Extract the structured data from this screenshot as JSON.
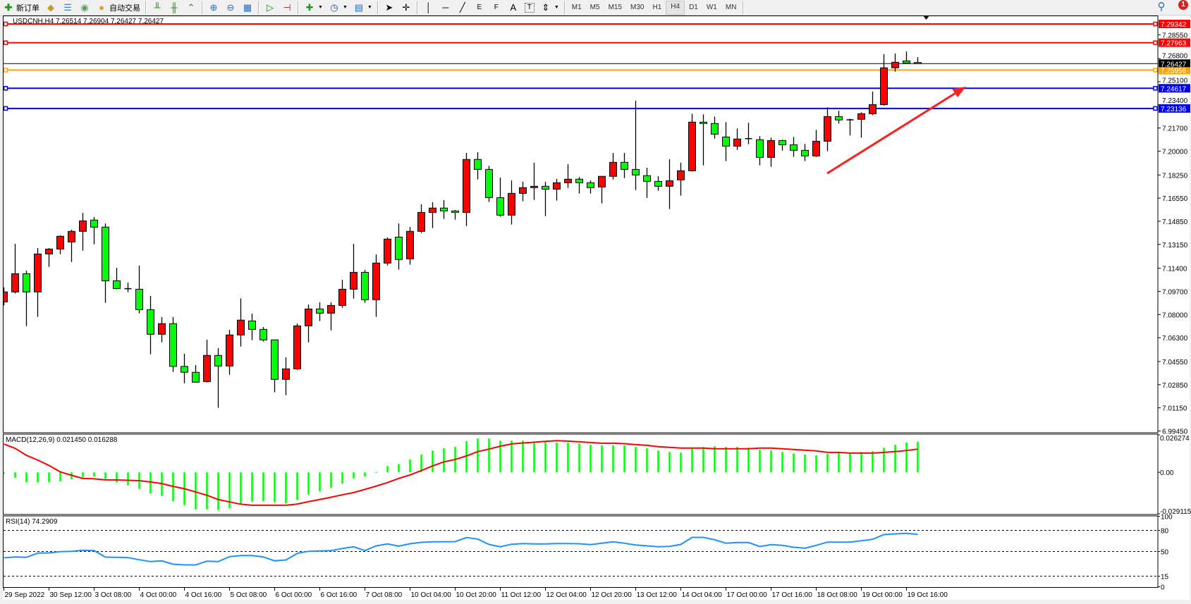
{
  "toolbar": {
    "new_order_label": "新订单",
    "auto_trading_label": "自动交易",
    "timeframes": [
      "M1",
      "M5",
      "M15",
      "M30",
      "H1",
      "H4",
      "D1",
      "W1",
      "MN"
    ],
    "active_timeframe": "H4",
    "drawing_labels": {
      "fibo_fan": "E",
      "fibo_grid": "F",
      "text": "A",
      "label": "T"
    },
    "notification_count": "1"
  },
  "chart_title": "USDCNH,H4  7.26514 7.26904 7.26427 7.26427",
  "colors": {
    "bull": "#ff0000",
    "bear": "#00ff00",
    "macd_hist": "#00ff00",
    "macd_signal": "#ff0000",
    "rsi": "#1e90ff",
    "current_price": "#000000"
  },
  "chart_data": [
    {
      "type": "candlestick",
      "symbol": "USDCNH",
      "timeframe": "H4",
      "ylim": [
        6.9932,
        7.2991
      ],
      "price_ticks": [
        "7.28550",
        "7.26800",
        "7.25100",
        "7.23400",
        "7.21700",
        "7.20000",
        "7.18250",
        "7.16550",
        "7.14850",
        "7.13150",
        "7.11400",
        "7.09700",
        "7.08000",
        "7.06300",
        "7.04550",
        "7.02850",
        "7.01150",
        "6.99450"
      ],
      "time_labels": [
        "29 Sep 2022",
        "30 Sep 12:00",
        "3 Oct 08:00",
        "4 Oct 00:00",
        "4 Oct 16:00",
        "5 Oct 08:00",
        "6 Oct 00:00",
        "6 Oct 16:00",
        "7 Oct 08:00",
        "10 Oct 04:00",
        "10 Oct 20:00",
        "11 Oct 12:00",
        "12 Oct 04:00",
        "12 Oct 20:00",
        "13 Oct 12:00",
        "14 Oct 04:00",
        "17 Oct 00:00",
        "17 Oct 16:00",
        "18 Oct 08:00",
        "19 Oct 00:00",
        "19 Oct 16:00"
      ],
      "time_label_every_bars": 4,
      "current_price": {
        "value": 7.26427,
        "label": "7.26427"
      },
      "hlines": [
        {
          "value": 7.29342,
          "label": "7.29342",
          "color": "#ff0000"
        },
        {
          "value": 7.27963,
          "label": "7.27963",
          "color": "#ff0000"
        },
        {
          "value": 7.25956,
          "label": "7.25956",
          "color": "#ffa500"
        },
        {
          "value": 7.24617,
          "label": "7.24617",
          "color": "#0000ff"
        },
        {
          "value": 7.23136,
          "label": "7.23136",
          "color": "#0000ff"
        }
      ],
      "annotation": {
        "type": "arrow",
        "color": "#ff2020",
        "direction": "up-right"
      },
      "ohlc": [
        [
          7.0893,
          7.1,
          7.0867,
          7.0966
        ],
        [
          7.0966,
          7.1319,
          7.0954,
          7.11
        ],
        [
          7.11,
          7.1123,
          7.0715,
          7.0966
        ],
        [
          7.0966,
          7.1288,
          7.0783,
          7.1245
        ],
        [
          7.1245,
          7.1288,
          7.115,
          7.1281
        ],
        [
          7.1281,
          7.1381,
          7.1243,
          7.1375
        ],
        [
          7.1333,
          7.1423,
          7.1186,
          7.1411
        ],
        [
          7.1411,
          7.1547,
          7.1269,
          7.1488
        ],
        [
          7.1494,
          7.1516,
          7.1316,
          7.1442
        ],
        [
          7.1442,
          7.1469,
          7.0886,
          7.1048
        ],
        [
          7.1048,
          7.1143,
          7.0985,
          7.0991
        ],
        [
          7.099,
          7.1035,
          7.0964,
          7.099
        ],
        [
          7.0986,
          7.1159,
          7.0809,
          7.0836
        ],
        [
          7.0836,
          7.0936,
          7.0508,
          7.0655
        ],
        [
          7.0655,
          7.0781,
          7.0596,
          7.0733
        ],
        [
          7.0733,
          7.0781,
          7.0379,
          7.0419
        ],
        [
          7.0419,
          7.0512,
          7.0296,
          7.0376
        ],
        [
          7.0376,
          7.0429,
          7.0303,
          7.0303
        ],
        [
          7.0308,
          7.0615,
          7.0301,
          7.05
        ],
        [
          7.05,
          7.0553,
          7.0115,
          7.0422
        ],
        [
          7.0422,
          7.0688,
          7.0358,
          7.065
        ],
        [
          7.065,
          7.0919,
          7.0565,
          7.0759
        ],
        [
          7.0753,
          7.0807,
          7.0612,
          7.0691
        ],
        [
          7.0691,
          7.0709,
          7.0602,
          7.0614
        ],
        [
          7.0614,
          7.0614,
          7.0229,
          7.0324
        ],
        [
          7.0324,
          7.0486,
          7.0208,
          7.0401
        ],
        [
          7.0401,
          7.0734,
          7.0393,
          7.0717
        ],
        [
          7.0717,
          7.0874,
          7.0596,
          7.0841
        ],
        [
          7.0841,
          7.089,
          7.0752,
          7.081
        ],
        [
          7.081,
          7.089,
          7.0684,
          7.0867
        ],
        [
          7.0867,
          7.1055,
          7.085,
          7.0986
        ],
        [
          7.0986,
          7.1319,
          7.0917,
          7.111
        ],
        [
          7.111,
          7.1128,
          7.0886,
          7.0909
        ],
        [
          7.0909,
          7.1242,
          7.0783,
          7.1178
        ],
        [
          7.1178,
          7.1366,
          7.1161,
          7.1354
        ],
        [
          7.1369,
          7.1469,
          7.113,
          7.1204
        ],
        [
          7.1209,
          7.1443,
          7.1166,
          7.1411
        ],
        [
          7.1411,
          7.1609,
          7.1399,
          7.155
        ],
        [
          7.155,
          7.1625,
          7.1435,
          7.1582
        ],
        [
          7.1582,
          7.164,
          7.1502,
          7.1561
        ],
        [
          7.1561,
          7.1568,
          7.1497,
          7.155
        ],
        [
          7.155,
          7.1987,
          7.145,
          7.1939
        ],
        [
          7.1939,
          7.1992,
          7.1792,
          7.1866
        ],
        [
          7.1866,
          7.1892,
          7.1627,
          7.1659
        ],
        [
          7.1659,
          7.1806,
          7.1518,
          7.153
        ],
        [
          7.153,
          7.1785,
          7.1461,
          7.169
        ],
        [
          7.169,
          7.1775,
          7.1632,
          7.1732
        ],
        [
          7.1732,
          7.1915,
          7.1642,
          7.1742
        ],
        [
          7.1742,
          7.1775,
          7.1523,
          7.1721
        ],
        [
          7.1721,
          7.1796,
          7.1637,
          7.1768
        ],
        [
          7.1768,
          7.1904,
          7.173,
          7.1794
        ],
        [
          7.1794,
          7.1811,
          7.1689,
          7.1768
        ],
        [
          7.1768,
          7.1785,
          7.1689,
          7.1732
        ],
        [
          7.1737,
          7.1815,
          7.1616,
          7.1815
        ],
        [
          7.1815,
          7.1987,
          7.1792,
          7.1918
        ],
        [
          7.1918,
          7.1987,
          7.1802,
          7.1866
        ],
        [
          7.1866,
          7.237,
          7.1714,
          7.1825
        ],
        [
          7.182,
          7.1878,
          7.1657,
          7.1778
        ],
        [
          7.1778,
          7.1816,
          7.1709,
          7.1742
        ],
        [
          7.1742,
          7.194,
          7.1575,
          7.1783
        ],
        [
          7.1789,
          7.1915,
          7.1673,
          7.1856
        ],
        [
          7.1856,
          7.2275,
          7.185,
          7.2213
        ],
        [
          7.2213,
          7.227,
          7.1896,
          7.2203
        ],
        [
          7.2203,
          7.2254,
          7.2092,
          7.2125
        ],
        [
          7.2104,
          7.2213,
          7.1927,
          7.2037
        ],
        [
          7.2037,
          7.2166,
          7.2009,
          7.2089
        ],
        [
          7.2089,
          7.2208,
          7.2051,
          7.2092
        ],
        [
          7.2084,
          7.211,
          7.1896,
          7.1954
        ],
        [
          7.1954,
          7.2099,
          7.1885,
          7.2078
        ],
        [
          7.2078,
          7.2084,
          7.2004,
          7.2047
        ],
        [
          7.2047,
          7.2104,
          7.1958,
          7.2006
        ],
        [
          7.2006,
          7.2053,
          7.1927,
          7.1965
        ],
        [
          7.1965,
          7.2156,
          7.1958,
          7.2073
        ],
        [
          7.2073,
          7.2322,
          7.1999,
          7.2254
        ],
        [
          7.2254,
          7.2296,
          7.2203,
          7.2229
        ],
        [
          7.2229,
          7.2239,
          7.2115,
          7.223
        ],
        [
          7.2234,
          7.2285,
          7.2099,
          7.2275
        ],
        [
          7.2275,
          7.2437,
          7.2265,
          7.2342
        ],
        [
          7.2342,
          7.2712,
          7.2335,
          7.2612
        ],
        [
          7.2612,
          7.2717,
          7.2584,
          7.2653
        ],
        [
          7.2663,
          7.2732,
          7.2646,
          7.2648
        ],
        [
          7.26514,
          7.26904,
          7.26427,
          7.26427
        ]
      ]
    },
    {
      "type": "bar",
      "title": "MACD(12,26,9) 0.021450 0.016288",
      "ylim": [
        -0.029115,
        0.026274
      ],
      "axis_labels": [
        "0.026274",
        "0.00",
        "-0.029115"
      ],
      "histogram": [
        -0.001,
        -0.0038,
        -0.0071,
        -0.0071,
        -0.0071,
        -0.0063,
        -0.0049,
        -0.0035,
        -0.003,
        -0.0046,
        -0.0071,
        -0.0092,
        -0.0117,
        -0.0148,
        -0.0166,
        -0.0203,
        -0.0231,
        -0.026,
        -0.026,
        -0.0265,
        -0.0252,
        -0.0222,
        -0.0206,
        -0.0203,
        -0.0211,
        -0.0219,
        -0.0194,
        -0.0157,
        -0.0134,
        -0.0109,
        -0.0079,
        -0.0043,
        -0.003,
        0.0002,
        0.0044,
        0.0058,
        0.0089,
        0.0125,
        0.0153,
        0.0168,
        0.0178,
        0.0218,
        0.0237,
        0.0237,
        0.0222,
        0.0222,
        0.0222,
        0.0209,
        0.0213,
        0.0208,
        0.0208,
        0.0203,
        0.0193,
        0.0188,
        0.0188,
        0.0188,
        0.0178,
        0.0168,
        0.0153,
        0.0143,
        0.0138,
        0.0168,
        0.0178,
        0.0183,
        0.0178,
        0.0178,
        0.0173,
        0.0158,
        0.0153,
        0.0143,
        0.0133,
        0.0124,
        0.0119,
        0.0129,
        0.0138,
        0.0133,
        0.0143,
        0.0148,
        0.0173,
        0.0193,
        0.0208,
        0.02145
      ],
      "signal": [
        0.0198,
        0.0168,
        0.0119,
        0.0086,
        0.0048,
        0.0003,
        -0.0021,
        -0.0043,
        -0.0046,
        -0.0053,
        -0.0054,
        -0.0056,
        -0.0059,
        -0.0068,
        -0.0079,
        -0.0099,
        -0.0115,
        -0.0138,
        -0.0161,
        -0.0191,
        -0.0208,
        -0.0224,
        -0.0231,
        -0.0231,
        -0.0231,
        -0.0231,
        -0.0223,
        -0.0206,
        -0.0191,
        -0.0175,
        -0.0158,
        -0.0142,
        -0.012,
        -0.0097,
        -0.0072,
        -0.0043,
        -0.0018,
        0.0012,
        0.0045,
        0.0073,
        0.009,
        0.0115,
        0.0145,
        0.0163,
        0.0183,
        0.0199,
        0.0206,
        0.0211,
        0.0217,
        0.0222,
        0.0219,
        0.0214,
        0.0209,
        0.0204,
        0.0204,
        0.0201,
        0.0194,
        0.0189,
        0.018,
        0.0175,
        0.017,
        0.017,
        0.017,
        0.0165,
        0.0165,
        0.0165,
        0.0165,
        0.017,
        0.017,
        0.0165,
        0.016,
        0.0155,
        0.015,
        0.014,
        0.014,
        0.0135,
        0.0135,
        0.0135,
        0.014,
        0.0145,
        0.0153,
        0.016288
      ]
    },
    {
      "type": "line",
      "title": "RSI(14) 74.2909",
      "ylim": [
        0,
        100
      ],
      "levels": [
        80,
        50,
        15
      ],
      "axis_labels": [
        "100",
        "80",
        "50",
        "15",
        "0"
      ],
      "values": [
        41,
        42.3,
        41.7,
        47.7,
        48,
        49.7,
        50.3,
        51.7,
        51.3,
        42,
        41.7,
        41.3,
        38.3,
        35.7,
        36.7,
        32,
        31,
        31,
        36.3,
        35.7,
        42.7,
        44.3,
        44.3,
        42.3,
        36.7,
        38,
        47.3,
        50.3,
        50.7,
        51.3,
        54.3,
        56.7,
        51.3,
        58,
        60.7,
        57.7,
        61,
        63,
        63.7,
        63.7,
        64,
        69.7,
        67.7,
        60,
        56.7,
        60.3,
        61.3,
        60.7,
        60.7,
        61.3,
        61.3,
        61,
        59.7,
        61.7,
        63.7,
        61.7,
        59.3,
        58,
        56.7,
        57.3,
        60,
        70,
        70,
        66.7,
        61.7,
        62.7,
        62.7,
        57,
        59.7,
        58.7,
        56,
        54.7,
        58.7,
        63.3,
        63.3,
        63.3,
        65.3,
        67.3,
        74,
        75,
        75.7,
        74.2909
      ]
    }
  ]
}
